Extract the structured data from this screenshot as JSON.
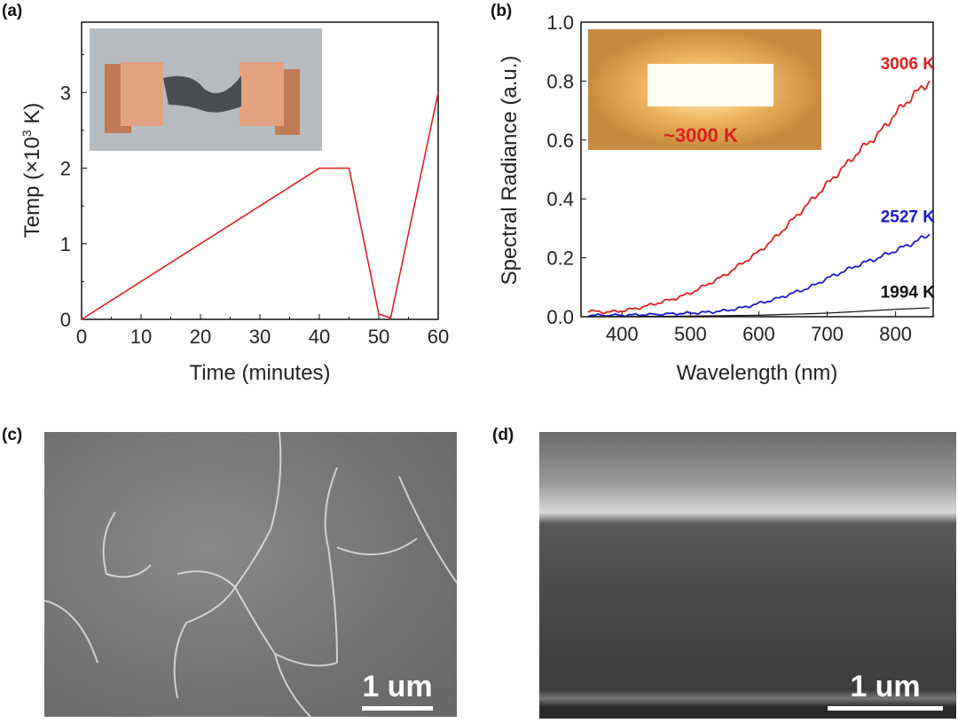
{
  "panels": {
    "a": "(a)",
    "b": "(b)",
    "c": "(c)",
    "d": "(d)"
  },
  "chart_data": [
    {
      "type": "line",
      "panel": "(a)",
      "xlabel": "Time (minutes)",
      "ylabel_main": "Temp (×10",
      "ylabel_sup": "3",
      "ylabel_end": " K)",
      "xlim": [
        0,
        60
      ],
      "ylim": [
        0,
        3.93
      ],
      "xticks": [
        0,
        10,
        20,
        30,
        40,
        50,
        60
      ],
      "yticks": [
        0,
        1,
        2,
        3
      ],
      "series": [
        {
          "color": "#e02020",
          "x": [
            0,
            40,
            45,
            50,
            52,
            60
          ],
          "y": [
            0,
            2,
            2,
            0.07,
            0.02,
            3
          ]
        }
      ],
      "inset": "photo of film strip between copper electrodes"
    },
    {
      "type": "line",
      "panel": "(b)",
      "xlabel": "Wavelength (nm)",
      "ylabel": "Spectral Radiance (a.u.)",
      "xlim": [
        340,
        855
      ],
      "ylim": [
        0,
        1.0
      ],
      "xticks": [
        400,
        500,
        600,
        700,
        800
      ],
      "yticks": [
        "0.0",
        "0.2",
        "0.4",
        "0.6",
        "0.8",
        "1.0"
      ],
      "series": [
        {
          "name": "3006 K",
          "color": "#e01e1e",
          "x": [
            350,
            375,
            400,
            425,
            450,
            475,
            500,
            525,
            550,
            575,
            600,
            625,
            650,
            675,
            700,
            725,
            750,
            775,
            800,
            825,
            850
          ],
          "y": [
            0.02,
            0.015,
            0.02,
            0.03,
            0.045,
            0.06,
            0.08,
            0.11,
            0.14,
            0.18,
            0.22,
            0.27,
            0.33,
            0.39,
            0.45,
            0.51,
            0.57,
            0.62,
            0.69,
            0.75,
            0.8
          ]
        },
        {
          "name": "2527 K",
          "color": "#1a1ad0",
          "x": [
            350,
            400,
            450,
            500,
            525,
            550,
            575,
            600,
            625,
            650,
            675,
            700,
            725,
            750,
            775,
            800,
            825,
            850
          ],
          "y": [
            0.005,
            0.005,
            0.008,
            0.012,
            0.015,
            0.02,
            0.03,
            0.045,
            0.06,
            0.08,
            0.1,
            0.13,
            0.155,
            0.18,
            0.2,
            0.225,
            0.25,
            0.28
          ]
        },
        {
          "name": "1994 K",
          "color": "#111111",
          "x": [
            350,
            500,
            600,
            700,
            800,
            850
          ],
          "y": [
            0,
            0.002,
            0.005,
            0.012,
            0.025,
            0.03
          ]
        }
      ],
      "inset_label": "~3000 K"
    }
  ],
  "sem": {
    "c_scale": "1 um",
    "d_scale": "1 um"
  }
}
